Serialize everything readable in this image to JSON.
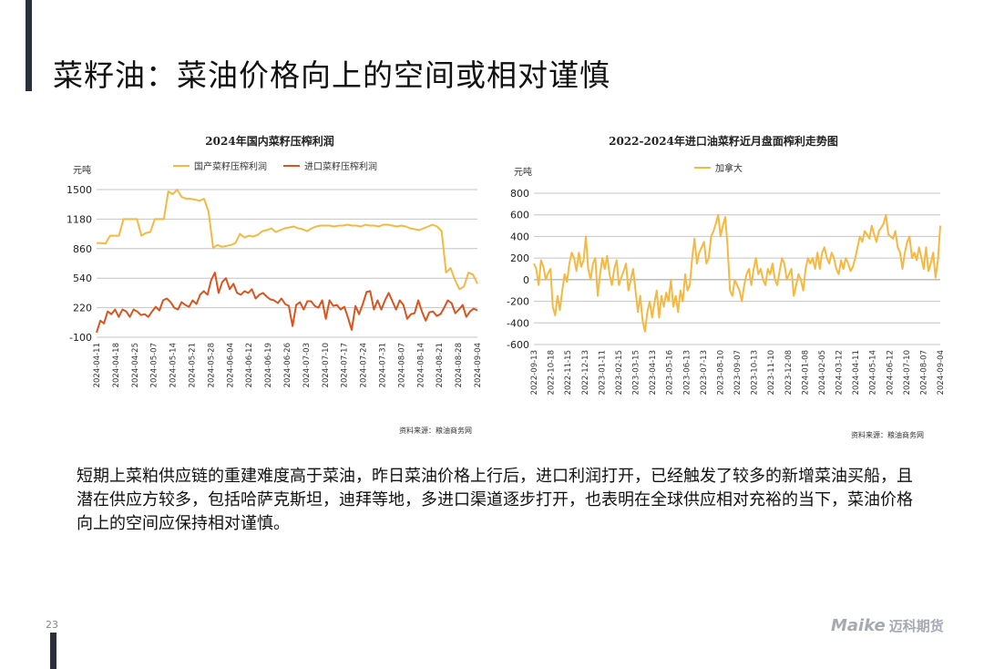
{
  "title": "菜籽油：菜油价格向上的空间或相对谨慎",
  "page_number": "23",
  "logo": {
    "en": "Maike",
    "cn": "迈科期货"
  },
  "body_text": "短期上菜粕供应链的重建难度高于菜油，昨日菜油价格上行后，进口利润打开，已经触发了较多的新增菜油买船，且潜在供应方较多，包括哈萨克斯坦，迪拜等地，多进口渠道逐步打开，也表明在全球供应相对充裕的当下，菜油价格向上的空间应保持相对谨慎。",
  "colors": {
    "domestic": "#f5b942",
    "imported": "#d9541e",
    "canada": "#f5b942",
    "grid": "#bfbfbf",
    "accent_bar": "#2b2f3a"
  },
  "chart_data": [
    {
      "type": "line",
      "title": "2024年国内菜籽压榨利润",
      "ylabel": "元吨",
      "ylim": [
        -100,
        1500
      ],
      "yticks": [
        -100,
        220,
        540,
        860,
        1180,
        1500
      ],
      "x_tick_labels": [
        "2024-04-11",
        "2024-04-18",
        "2024-04-25",
        "2024-05-07",
        "2024-05-14",
        "2024-05-21",
        "2024-05-28",
        "2024-06-04",
        "2024-06-12",
        "2024-06-19",
        "2024-06-26",
        "2024-07-03",
        "2024-07-10",
        "2024-07-17",
        "2024-07-24",
        "2024-07-31",
        "2024-08-07",
        "2024-08-14",
        "2024-08-21",
        "2024-08-28",
        "2024-09-04"
      ],
      "source": "资料来源：粮油商务网",
      "legend": "top-center",
      "grid": true,
      "series": [
        {
          "name": "国产菜籽压榨利润",
          "color": "#f5b942",
          "values": [
            920,
            920,
            915,
            1000,
            1000,
            1000,
            1180,
            1180,
            1180,
            1180,
            1000,
            1030,
            1040,
            1180,
            1180,
            1180,
            1480,
            1450,
            1500,
            1420,
            1400,
            1400,
            1390,
            1380,
            1400,
            1260,
            870,
            900,
            880,
            890,
            900,
            920,
            1020,
            980,
            1000,
            990,
            1010,
            1050,
            1060,
            1080,
            1040,
            1060,
            1080,
            1090,
            1100,
            1080,
            1070,
            1050,
            1080,
            1100,
            1110,
            1110,
            1110,
            1100,
            1110,
            1110,
            1120,
            1110,
            1110,
            1100,
            1120,
            1110,
            1110,
            1100,
            1120,
            1120,
            1110,
            1100,
            1110,
            1100,
            1080,
            1070,
            1060,
            1080,
            1100,
            1120,
            1100,
            1050,
            600,
            650,
            520,
            420,
            450,
            600,
            580,
            480
          ]
        },
        {
          "name": "进口菜籽压榨利润",
          "color": "#d9541e",
          "values": [
            -50,
            80,
            50,
            180,
            150,
            200,
            120,
            200,
            180,
            120,
            200,
            180,
            140,
            150,
            120,
            180,
            230,
            190,
            300,
            320,
            280,
            220,
            200,
            280,
            250,
            230,
            300,
            260,
            360,
            400,
            360,
            520,
            600,
            380,
            500,
            540,
            420,
            480,
            380,
            360,
            400,
            380,
            420,
            320,
            360,
            380,
            340,
            310,
            300,
            270,
            320,
            260,
            240,
            20,
            250,
            280,
            200,
            290,
            290,
            240,
            220,
            300,
            100,
            300,
            240,
            250,
            200,
            230,
            110,
            -20,
            240,
            150,
            260,
            390,
            400,
            200,
            300,
            200,
            300,
            380,
            290,
            200,
            300,
            250,
            100,
            150,
            160,
            300,
            180,
            80,
            170,
            180,
            130,
            150,
            220,
            300,
            270,
            160,
            200,
            250,
            120,
            180,
            210,
            190
          ]
        }
      ]
    },
    {
      "type": "line",
      "title": "2022-2024年进口油菜籽近月盘面榨利走势图",
      "ylabel": "元吨",
      "ylim": [
        -600,
        800
      ],
      "yticks": [
        -600,
        -400,
        -200,
        0,
        200,
        400,
        600,
        800
      ],
      "x_tick_labels": [
        "2022-09-13",
        "2022-10-18",
        "2022-11-15",
        "2022-12-13",
        "2023-01-11",
        "2023-02-15",
        "2023-03-15",
        "2023-04-13",
        "2023-05-16",
        "2023-06-13",
        "2023-07-13",
        "2023-08-10",
        "2023-09-07",
        "2023-10-13",
        "2023-11-10",
        "2023-12-08",
        "2024-01-08",
        "2024-02-05",
        "2024-03-12",
        "2024-04-11",
        "2024-05-14",
        "2024-06-12",
        "2024-07-10",
        "2024-08-07",
        "2024-09-04"
      ],
      "source": "资料来源：粮油商务网",
      "legend": "top-center",
      "grid": true,
      "series": [
        {
          "name": "加拿大",
          "color": "#f5b942",
          "values": [
            150,
            100,
            -50,
            180,
            120,
            0,
            60,
            100,
            -250,
            -330,
            -150,
            -280,
            -100,
            50,
            -20,
            150,
            250,
            200,
            80,
            250,
            120,
            180,
            400,
            100,
            0,
            150,
            200,
            -150,
            50,
            200,
            100,
            220,
            50,
            -50,
            100,
            180,
            -50,
            20,
            80,
            150,
            -100,
            0,
            100,
            -100,
            -300,
            -150,
            -380,
            -480,
            -300,
            -200,
            -350,
            -220,
            -100,
            -350,
            -150,
            -250,
            -120,
            -200,
            0,
            -250,
            -150,
            -300,
            -100,
            -200,
            50,
            -100,
            -50,
            200,
            380,
            150,
            250,
            300,
            350,
            150,
            200,
            400,
            450,
            520,
            600,
            400,
            500,
            580,
            300,
            -100,
            -150,
            0,
            -50,
            -100,
            -200,
            -50,
            50,
            100,
            -50,
            100,
            200,
            50,
            100,
            0,
            -50,
            100,
            50,
            150,
            0,
            -50,
            80,
            200,
            150,
            0,
            50,
            100,
            -150,
            -50,
            50,
            0,
            -100,
            100,
            200,
            150,
            200,
            100,
            250,
            100,
            250,
            300,
            200,
            150,
            250,
            200,
            100,
            50,
            180,
            100,
            200,
            150,
            80,
            120,
            200,
            300,
            400,
            350,
            450,
            420,
            380,
            500,
            420,
            350,
            450,
            480,
            520,
            600,
            420,
            400,
            380,
            450,
            300,
            250,
            100,
            250,
            350,
            400,
            200,
            250,
            180,
            300,
            200,
            100,
            300,
            80,
            150,
            250,
            20,
            180,
            500
          ]
        }
      ]
    }
  ]
}
